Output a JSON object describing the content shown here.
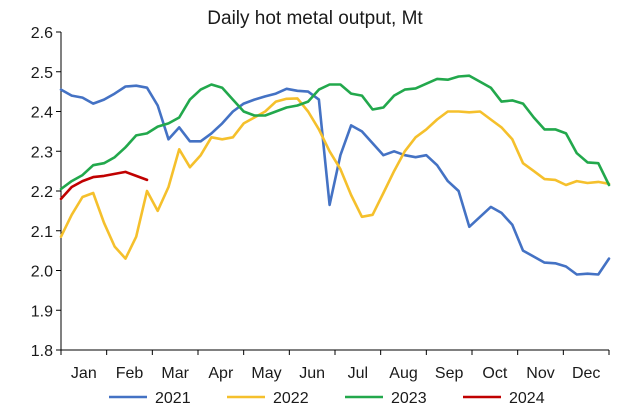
{
  "chart_data": {
    "type": "line",
    "title": "Daily hot metal output, Mt",
    "xlabel": "",
    "ylabel": "",
    "x_tick_labels": [
      "Jan",
      "Feb",
      "Mar",
      "Apr",
      "May",
      "Jun",
      "Jul",
      "Aug",
      "Sep",
      "Oct",
      "Nov",
      "Dec"
    ],
    "x_range": [
      0,
      51
    ],
    "ylim": [
      1.8,
      2.6
    ],
    "y_ticks": [
      1.8,
      1.9,
      2.0,
      2.1,
      2.2,
      2.3,
      2.4,
      2.5,
      2.6
    ],
    "y_tick_labels": [
      "1.8",
      "1.9",
      "2.0",
      "2.1",
      "2.2",
      "2.3",
      "2.4",
      "2.5",
      "2.6"
    ],
    "grid": false,
    "legend_position": "bottom",
    "series": [
      {
        "name": "2021",
        "color": "#4472C4",
        "x": [
          0,
          1,
          2,
          3,
          4,
          5,
          6,
          7,
          8,
          9,
          10,
          11,
          12,
          13,
          14,
          15,
          16,
          17,
          18,
          19,
          20,
          21,
          22,
          23,
          24,
          25,
          26,
          27,
          28,
          29,
          30,
          31,
          32,
          33,
          34,
          35,
          36,
          37,
          38,
          39,
          40,
          41,
          42,
          43,
          44,
          45,
          46,
          47,
          48,
          49,
          50,
          51
        ],
        "values": [
          2.455,
          2.44,
          2.435,
          2.42,
          2.43,
          2.445,
          2.463,
          2.465,
          2.46,
          2.415,
          2.33,
          2.36,
          2.325,
          2.325,
          2.345,
          2.37,
          2.4,
          2.42,
          2.43,
          2.438,
          2.445,
          2.457,
          2.452,
          2.45,
          2.43,
          2.165,
          2.29,
          2.365,
          2.35,
          2.32,
          2.29,
          2.3,
          2.29,
          2.285,
          2.29,
          2.265,
          2.225,
          2.2,
          2.11,
          2.135,
          2.16,
          2.145,
          2.115,
          2.05,
          2.035,
          2.02,
          2.018,
          2.01,
          1.99,
          1.992,
          1.99,
          2.03
        ]
      },
      {
        "name": "2022",
        "color": "#F5C02C",
        "x": [
          0,
          1,
          2,
          3,
          4,
          5,
          6,
          7,
          8,
          9,
          10,
          11,
          12,
          13,
          14,
          15,
          16,
          17,
          18,
          19,
          20,
          21,
          22,
          23,
          24,
          25,
          26,
          27,
          28,
          29,
          30,
          31,
          32,
          33,
          34,
          35,
          36,
          37,
          38,
          39,
          40,
          41,
          42,
          43,
          44,
          45,
          46,
          47,
          48,
          49,
          50,
          51
        ],
        "values": [
          2.085,
          2.14,
          2.185,
          2.195,
          2.12,
          2.06,
          2.03,
          2.085,
          2.2,
          2.15,
          2.21,
          2.305,
          2.26,
          2.29,
          2.335,
          2.33,
          2.335,
          2.37,
          2.385,
          2.4,
          2.425,
          2.432,
          2.433,
          2.4,
          2.355,
          2.3,
          2.255,
          2.19,
          2.135,
          2.14,
          2.195,
          2.25,
          2.3,
          2.335,
          2.355,
          2.38,
          2.4,
          2.4,
          2.398,
          2.4,
          2.38,
          2.36,
          2.33,
          2.27,
          2.25,
          2.23,
          2.228,
          2.215,
          2.225,
          2.22,
          2.223,
          2.218
        ]
      },
      {
        "name": "2023",
        "color": "#22A84C",
        "x": [
          0,
          1,
          2,
          3,
          4,
          5,
          6,
          7,
          8,
          9,
          10,
          11,
          12,
          13,
          14,
          15,
          16,
          17,
          18,
          19,
          20,
          21,
          22,
          23,
          24,
          25,
          26,
          27,
          28,
          29,
          30,
          31,
          32,
          33,
          34,
          35,
          36,
          37,
          38,
          39,
          40,
          41,
          42,
          43,
          44,
          45,
          46,
          47,
          48,
          49,
          50,
          51
        ],
        "values": [
          2.205,
          2.225,
          2.24,
          2.265,
          2.27,
          2.285,
          2.31,
          2.34,
          2.345,
          2.362,
          2.37,
          2.385,
          2.43,
          2.455,
          2.468,
          2.46,
          2.43,
          2.4,
          2.39,
          2.39,
          2.4,
          2.41,
          2.415,
          2.425,
          2.455,
          2.468,
          2.468,
          2.445,
          2.44,
          2.405,
          2.41,
          2.44,
          2.455,
          2.458,
          2.47,
          2.482,
          2.48,
          2.488,
          2.49,
          2.475,
          2.46,
          2.425,
          2.428,
          2.42,
          2.385,
          2.355,
          2.355,
          2.345,
          2.295,
          2.272,
          2.27,
          2.215
        ]
      },
      {
        "name": "2024",
        "color": "#C00000",
        "x": [
          0,
          1,
          2,
          3,
          4,
          5,
          6,
          7,
          8
        ],
        "values": [
          2.18,
          2.21,
          2.225,
          2.235,
          2.238,
          2.243,
          2.248,
          2.238,
          2.228
        ]
      }
    ]
  }
}
